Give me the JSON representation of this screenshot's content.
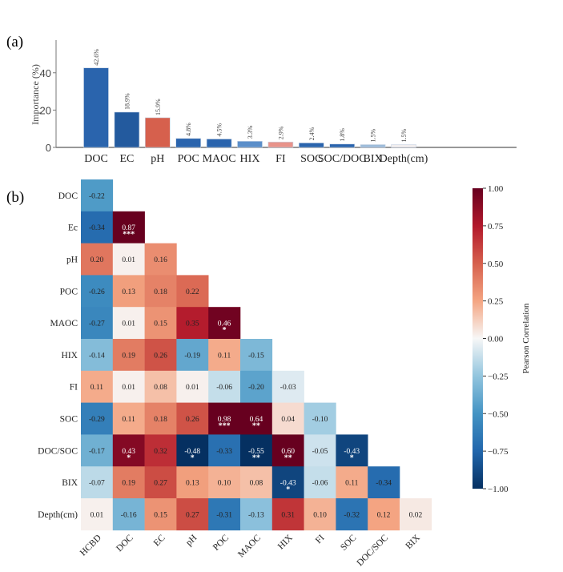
{
  "chart_data": [
    {
      "panel_label": "(a)",
      "type": "bar",
      "ylabel": "Importance (%)",
      "ylim": [
        0,
        57
      ],
      "yticks": [
        0,
        20,
        40
      ],
      "categories": [
        "DOC",
        "EC",
        "pH",
        "POC",
        "MAOC",
        "HIX",
        "FI",
        "SOC",
        "SOC/DOC",
        "BIX",
        "Depth(cm)"
      ],
      "values": [
        42.6,
        18.9,
        15.9,
        4.8,
        4.5,
        3.3,
        2.9,
        2.4,
        1.8,
        1.5,
        1.5
      ],
      "data_labels": [
        "42.6%",
        "18.9%",
        "15.9%",
        "4.8%",
        "4.5%",
        "3.3%",
        "2.9%",
        "2.4%",
        "1.8%",
        "1.5%",
        "1.5%"
      ],
      "colors": [
        "#2a64ad",
        "#235a9e",
        "#d6604d",
        "#2a64ad",
        "#2a64ad",
        "#5b8ec9",
        "#e8938a",
        "#2a64ad",
        "#2a64ad",
        "#9dbbd9",
        "#f2eeee"
      ]
    },
    {
      "panel_label": "(b)",
      "type": "heatmap",
      "row_labels": [
        "DOC",
        "Ec",
        "pH",
        "POC",
        "MAOC",
        "HIX",
        "FI",
        "SOC",
        "DOC/SOC",
        "BIX",
        "Depth(cm)"
      ],
      "col_labels": [
        "HCBD",
        "DOC",
        "EC",
        "pH",
        "POC",
        "MAOC",
        "HIX",
        "FI",
        "SOC",
        "DOC/SOC",
        "BIX"
      ],
      "values": [
        [
          -0.22
        ],
        [
          -0.34,
          0.87
        ],
        [
          0.2,
          0.01,
          0.16
        ],
        [
          -0.26,
          0.13,
          0.18,
          0.22
        ],
        [
          -0.27,
          0.01,
          0.15,
          0.35,
          0.46
        ],
        [
          -0.14,
          0.19,
          0.26,
          -0.19,
          0.11,
          -0.15
        ],
        [
          0.11,
          0.01,
          0.08,
          0.01,
          -0.06,
          -0.2,
          -0.03
        ],
        [
          -0.29,
          0.11,
          0.18,
          0.26,
          0.98,
          0.64,
          0.04,
          -0.1
        ],
        [
          -0.17,
          0.43,
          0.32,
          -0.48,
          -0.33,
          -0.55,
          0.6,
          -0.05,
          -0.43
        ],
        [
          -0.07,
          0.19,
          0.27,
          0.13,
          0.1,
          0.08,
          -0.43,
          -0.06,
          0.11,
          -0.34
        ],
        [
          0.01,
          -0.16,
          0.15,
          0.27,
          -0.31,
          -0.13,
          0.31,
          0.1,
          -0.32,
          0.12,
          0.02
        ]
      ],
      "significance": [
        [
          ""
        ],
        [
          "",
          "***"
        ],
        [
          "",
          "",
          ""
        ],
        [
          "",
          "",
          "",
          ""
        ],
        [
          "",
          "",
          "",
          "",
          "*"
        ],
        [
          "",
          "",
          "",
          "",
          "",
          ""
        ],
        [
          "",
          "",
          "",
          "",
          "",
          "",
          ""
        ],
        [
          "",
          "",
          "",
          "",
          "***",
          "**",
          "",
          ""
        ],
        [
          "",
          "*",
          "",
          "*",
          "",
          "**",
          "**",
          "",
          "*"
        ],
        [
          "",
          "",
          "",
          "",
          "",
          "",
          "*",
          "",
          "",
          ""
        ],
        [
          "",
          "",
          "",
          "",
          "",
          "",
          "",
          "",
          "",
          "",
          ""
        ]
      ],
      "colorbar": {
        "label": "Pearson Correlation",
        "range": [
          -1.0,
          1.0
        ],
        "ticks": [
          "1.00",
          "0.75",
          "0.50",
          "0.25",
          "0.00",
          "−0.25",
          "−0.50",
          "−0.75",
          "−1.00"
        ],
        "colormap": "RdBu_r"
      }
    }
  ]
}
